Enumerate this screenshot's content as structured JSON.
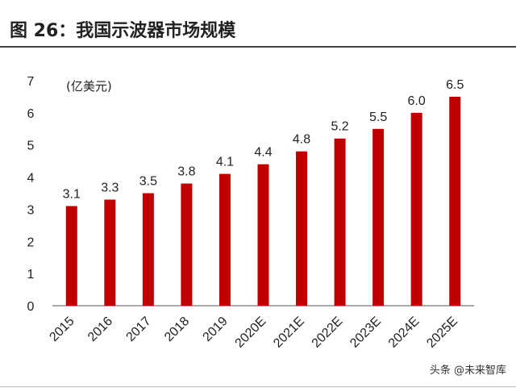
{
  "header": {
    "title": "图 26：我国示波器市场规模",
    "watermark": "头条 @未来智库"
  },
  "colors": {
    "bar": "#c00000",
    "axis": "#555555",
    "text": "#222222"
  },
  "chart_data": {
    "type": "bar",
    "title": "图 26：我国示波器市场规模",
    "unit_label": "(亿美元)",
    "xlabel": "",
    "ylabel": "",
    "categories": [
      "2015",
      "2016",
      "2017",
      "2018",
      "2019",
      "2020E",
      "2021E",
      "2022E",
      "2023E",
      "2024E",
      "2025E"
    ],
    "values": [
      3.1,
      3.3,
      3.5,
      3.8,
      4.1,
      4.4,
      4.8,
      5.2,
      5.5,
      6.0,
      6.5
    ],
    "data_labels": [
      "3.1",
      "3.3",
      "3.5",
      "3.8",
      "4.1",
      "4.4",
      "4.8",
      "5.2",
      "5.5",
      "6.0",
      "6.5"
    ],
    "ylim": [
      0,
      7
    ],
    "yticks": [
      "0",
      "1",
      "2",
      "3",
      "4",
      "5",
      "6",
      "7"
    ],
    "grid": false,
    "legend": "none"
  }
}
